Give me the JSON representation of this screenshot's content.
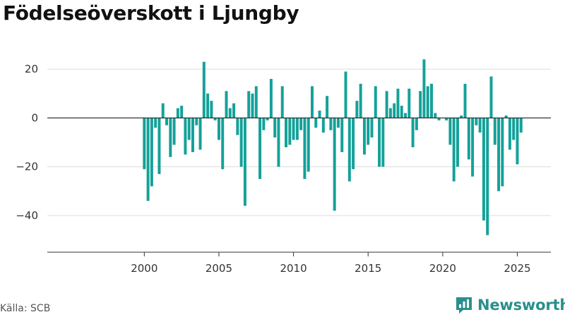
{
  "chart_data": {
    "type": "bar",
    "title": "Födelseöverskott i Ljungby",
    "xlabel": "",
    "ylabel": "",
    "x_start": 2000.0,
    "x_step": 0.25,
    "values": [
      -21,
      -34,
      -28,
      -4,
      -23,
      6,
      -3,
      -16,
      -11,
      4,
      5,
      -15,
      -9,
      -14,
      -3,
      -13,
      23,
      10,
      7,
      -1,
      -9,
      -21,
      11,
      4,
      6,
      -7,
      -20,
      -36,
      11,
      10,
      13,
      -25,
      -5,
      -1,
      16,
      -8,
      -20,
      13,
      -12,
      -11,
      -9,
      -9,
      -5,
      -25,
      -22,
      13,
      -4,
      3,
      -6,
      9,
      -5,
      -38,
      -4,
      -14,
      19,
      -26,
      -21,
      7,
      14,
      -15,
      -11,
      -8,
      13,
      -20,
      -20,
      11,
      4,
      6,
      12,
      5,
      2,
      12,
      -12,
      -5,
      11,
      24,
      13,
      14,
      2,
      -1,
      0,
      -1,
      -11,
      -26,
      -20,
      1,
      14,
      -17,
      -24,
      -3,
      -6,
      -42,
      -48,
      17,
      -11,
      -30,
      -28,
      1,
      -13,
      -9,
      -19,
      -6
    ],
    "xlim": [
      1993.5,
      2027.25
    ],
    "ylim": [
      -55,
      31
    ],
    "xticks": [
      2000,
      2005,
      2010,
      2015,
      2020,
      2025
    ],
    "yticks": [
      -40,
      -20,
      0,
      20
    ],
    "grid": true,
    "bar_color": "#14a199"
  },
  "footer": {
    "source": "Källa: SCB",
    "brand": "Newsworthy",
    "brand_color": "#2a8f8c",
    "brand_icon": "newsworthy-logo-icon"
  }
}
